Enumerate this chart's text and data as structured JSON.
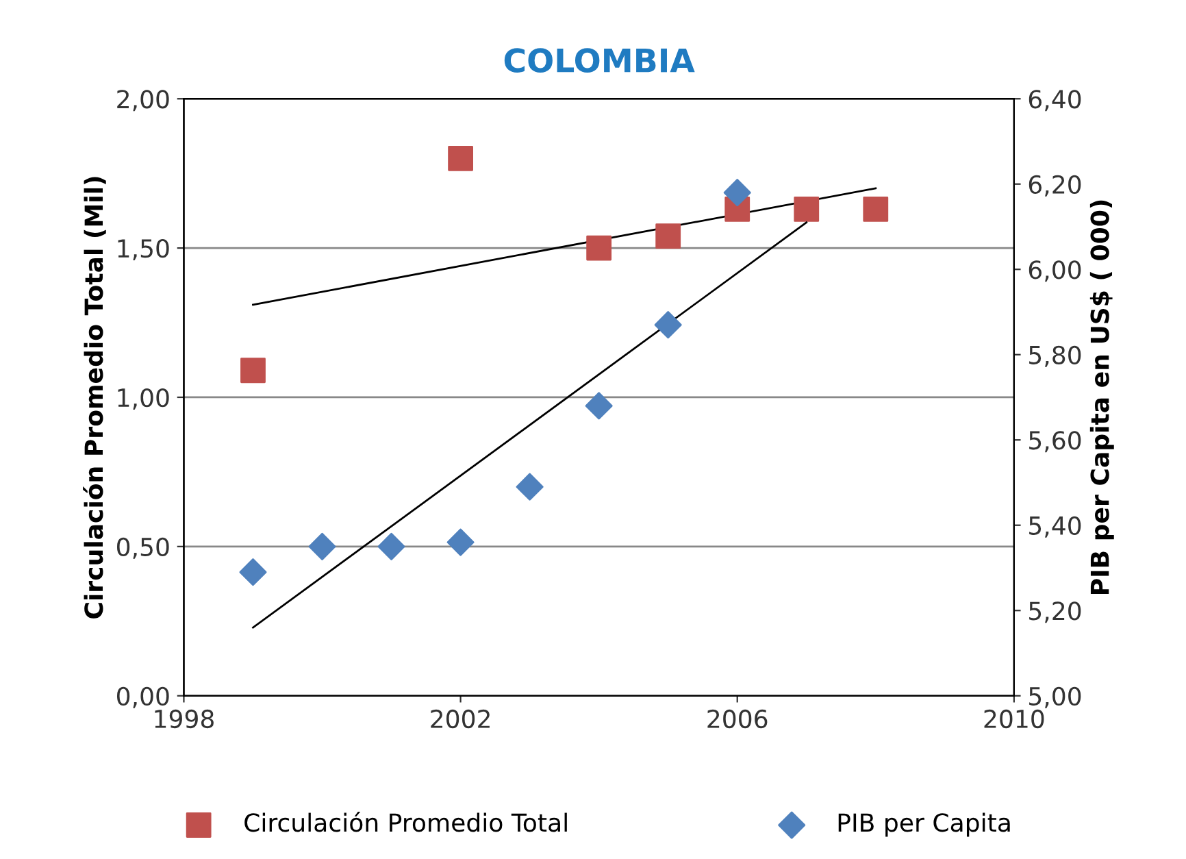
{
  "chart_data": {
    "type": "scatter",
    "title": "COLOMBIA",
    "ylabel": "Circulación Promedio Total (Mil)",
    "y2label": "PIB per Capita en US$ ( 000)",
    "xlim": [
      1998,
      2010
    ],
    "xticks": [
      1998,
      2002,
      2006,
      2010
    ],
    "ylim": [
      0,
      2
    ],
    "yticks": [
      {
        "value": 0,
        "label": "0,00"
      },
      {
        "value": 0.5,
        "label": "0,50"
      },
      {
        "value": 1,
        "label": "1,00"
      },
      {
        "value": 1.5,
        "label": "1,50"
      },
      {
        "value": 2,
        "label": "2,00"
      }
    ],
    "y2lim": [
      5,
      6.4
    ],
    "y2ticks": [
      {
        "value": 5,
        "label": "5,00"
      },
      {
        "value": 5.2,
        "label": "5,20"
      },
      {
        "value": 5.4,
        "label": "5,40"
      },
      {
        "value": 5.6,
        "label": "5,60"
      },
      {
        "value": 5.8,
        "label": "5,80"
      },
      {
        "value": 6,
        "label": "6,00"
      },
      {
        "value": 6.2,
        "label": "6,20"
      },
      {
        "value": 6.4,
        "label": "6,40"
      }
    ],
    "grid": "y",
    "legend": "bottom",
    "series": [
      {
        "name": "Circulación Promedio Total",
        "color": "#c0504d",
        "marker": "square",
        "x": [
          1999,
          2002,
          2004,
          2005,
          2006,
          2007,
          2008
        ],
        "values": [
          1.09,
          1.8,
          1.5,
          1.54,
          1.63,
          1.63,
          1.63
        ]
      },
      {
        "name": "PIB per Capita",
        "color": "#4f81bd",
        "marker": "diamond",
        "axis": "y2",
        "x": [
          1999,
          2000,
          2001,
          2002,
          2003,
          2004,
          2005,
          2006
        ],
        "values": [
          5.29,
          5.35,
          5.35,
          5.36,
          5.49,
          5.68,
          5.87,
          6.18
        ]
      },
      {
        "type": "line",
        "color": "#000000",
        "x": [
          1999,
          2008
        ],
        "values": [
          1.31,
          1.7
        ]
      },
      {
        "type": "line",
        "color": "#000000",
        "axis": "y2",
        "x": [
          1999,
          2007
        ],
        "values": [
          5.16,
          6.11
        ]
      }
    ]
  }
}
